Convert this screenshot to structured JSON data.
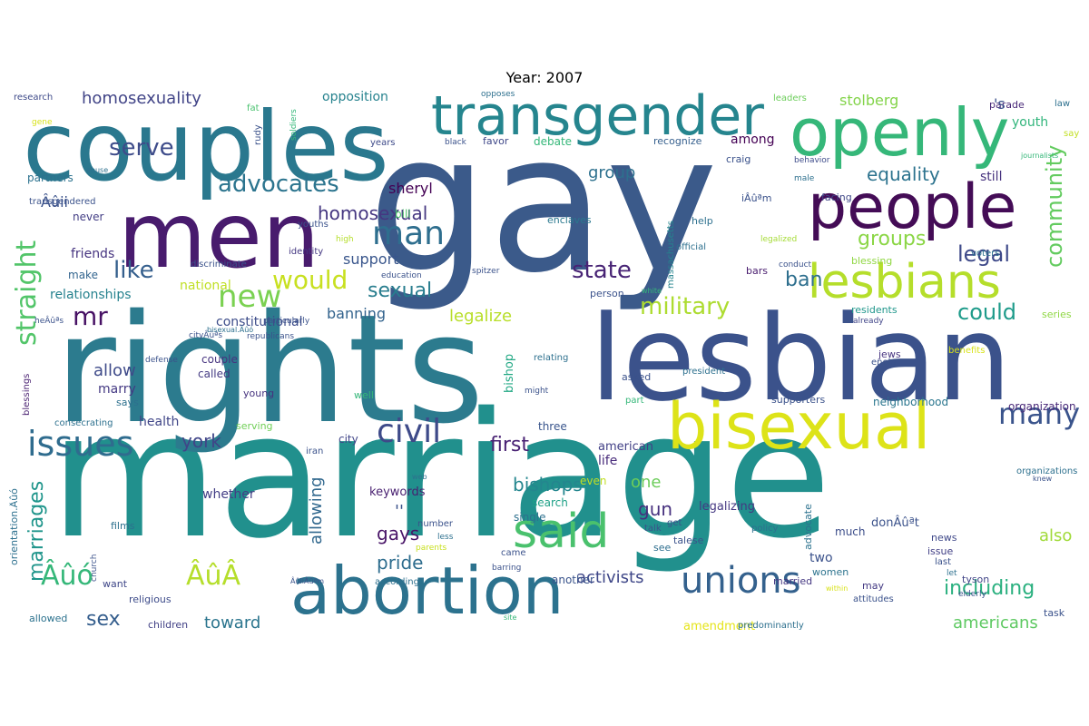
{
  "chart_data": {
    "type": "wordcloud",
    "title": "Year: 2007",
    "words": [
      {
        "text": "gay",
        "weight": 100,
        "color": "#3b5a8a"
      },
      {
        "text": "marriage",
        "weight": 96,
        "color": "#21908d"
      },
      {
        "text": "rights",
        "weight": 84,
        "color": "#2c7b8e"
      },
      {
        "text": "lesbian",
        "weight": 74,
        "color": "#3b528b"
      },
      {
        "text": "couples",
        "weight": 60,
        "color": "#2a788e"
      },
      {
        "text": "men",
        "weight": 60,
        "color": "#481b6d"
      },
      {
        "text": "bisexual",
        "weight": 48,
        "color": "#dde318"
      },
      {
        "text": "abortion",
        "weight": 48,
        "color": "#2c728e"
      },
      {
        "text": "openly",
        "weight": 46,
        "color": "#35b779"
      },
      {
        "text": "people",
        "weight": 44,
        "color": "#440c56"
      },
      {
        "text": "transgender",
        "weight": 42,
        "color": "#25858e"
      },
      {
        "text": "lesbians",
        "weight": 36,
        "color": "#b5de2b"
      },
      {
        "text": "said",
        "weight": 36,
        "color": "#4ac16d"
      },
      {
        "text": "unions",
        "weight": 30,
        "color": "#34618d"
      },
      {
        "text": "issues",
        "weight": 30,
        "color": "#2f6c8e"
      },
      {
        "text": "civil",
        "weight": 28,
        "color": "#3e4a89"
      },
      {
        "text": "man",
        "weight": 28,
        "color": "#2e6e8e"
      },
      {
        "text": "new",
        "weight": 24,
        "color": "#7ad151"
      },
      {
        "text": "straight",
        "weight": 22,
        "color": "#52c569"
      },
      {
        "text": "many",
        "weight": 22,
        "color": "#3a548c"
      },
      {
        "text": "would",
        "weight": 20,
        "color": "#c8e020"
      },
      {
        "text": "serve",
        "weight": 20,
        "color": "#3e4c8a"
      },
      {
        "text": "advocates",
        "weight": 20,
        "color": "#2b748e"
      },
      {
        "text": "military",
        "weight": 20,
        "color": "#addc30"
      },
      {
        "text": "community",
        "weight": 20,
        "color": "#63cb5f"
      },
      {
        "text": "state",
        "weight": 20,
        "color": "#482475"
      },
      {
        "text": "like",
        "weight": 20,
        "color": "#355f8d"
      },
      {
        "text": "mr",
        "weight": 20,
        "color": "#471164"
      },
      {
        "text": "including",
        "weight": 18,
        "color": "#2ab07f"
      },
      {
        "text": "could",
        "weight": 18,
        "color": "#1e9b8a"
      },
      {
        "text": "sexual",
        "weight": 18,
        "color": "#287d8e"
      },
      {
        "text": "marriages",
        "weight": 18,
        "color": "#1f958b"
      },
      {
        "text": "legal",
        "weight": 18,
        "color": "#3e4989"
      },
      {
        "text": "groups",
        "weight": 18,
        "color": "#8bd646"
      },
      {
        "text": "equality",
        "weight": 16,
        "color": "#2c738e"
      },
      {
        "text": "homosexual",
        "weight": 16,
        "color": "#453781"
      },
      {
        "text": "homosexuality",
        "weight": 16,
        "color": "#414487"
      },
      {
        "text": "bishops",
        "weight": 16,
        "color": "#24868e"
      },
      {
        "text": "first",
        "weight": 16,
        "color": "#482173"
      },
      {
        "text": "york",
        "weight": 16,
        "color": "#404588"
      },
      {
        "text": "sex",
        "weight": 16,
        "color": "#355e8d"
      },
      {
        "text": "pride",
        "weight": 16,
        "color": "#2e6d8e"
      },
      {
        "text": "gays",
        "weight": 16,
        "color": "#481467"
      },
      {
        "text": "ban",
        "weight": 16,
        "color": "#2e6f8e"
      },
      {
        "text": "americans",
        "weight": 14,
        "color": "#5ec962"
      },
      {
        "text": "activists",
        "weight": 14,
        "color": "#3f4788"
      },
      {
        "text": "toward",
        "weight": 14,
        "color": "#2b758e"
      },
      {
        "text": "legalize",
        "weight": 14,
        "color": "#b8de29"
      },
      {
        "text": "gun",
        "weight": 14,
        "color": "#46307e"
      },
      {
        "text": "one",
        "weight": 14,
        "color": "#6ccd5a"
      },
      {
        "text": "also",
        "weight": 14,
        "color": "#a0da39"
      },
      {
        "text": "allow",
        "weight": 14,
        "color": "#3e4a89"
      },
      {
        "text": "allowing",
        "weight": 14,
        "color": "#31688e"
      },
      {
        "text": "stolberg",
        "weight": 12,
        "color": "#84d44b"
      },
      {
        "text": "group",
        "weight": 12,
        "color": "#2d708e"
      },
      {
        "text": "sheryl",
        "weight": 12,
        "color": "#440154"
      },
      {
        "text": "banning",
        "weight": 12,
        "color": "#33638d"
      },
      {
        "text": "support",
        "weight": 12,
        "color": "#39568c"
      },
      {
        "text": "relationships",
        "weight": 11,
        "color": "#26828e"
      },
      {
        "text": "friends",
        "weight": 11,
        "color": "#463480"
      },
      {
        "text": "national",
        "weight": 11,
        "color": "#c0df25"
      },
      {
        "text": "constitutional",
        "weight": 11,
        "color": "#3d4d8a"
      },
      {
        "text": "health",
        "weight": 11,
        "color": "#404688"
      },
      {
        "text": "marry",
        "weight": 11,
        "color": "#443983"
      },
      {
        "text": "bishop",
        "weight": 11,
        "color": "#22a884"
      },
      {
        "text": "life",
        "weight": 11,
        "color": "#472a7a"
      },
      {
        "text": "american",
        "weight": 11,
        "color": "#424086"
      },
      {
        "text": "whether",
        "weight": 11,
        "color": "#433e85"
      },
      {
        "text": "keywords",
        "weight": 11,
        "color": "#481f70"
      },
      {
        "text": "opposition",
        "weight": 11,
        "color": "#26828e"
      },
      {
        "text": "youth",
        "weight": 11,
        "color": "#31b57b"
      },
      {
        "text": "among",
        "weight": 11,
        "color": "#440154"
      },
      {
        "text": "still",
        "weight": 11,
        "color": "#46327e"
      },
      {
        "text": "two",
        "weight": 11,
        "color": "#3b528b"
      },
      {
        "text": "organization",
        "weight": 10,
        "color": "#482878"
      },
      {
        "text": "neighborhood",
        "weight": 10,
        "color": "#2a768e"
      },
      {
        "text": "legalizing",
        "weight": 10,
        "color": "#453882"
      },
      {
        "text": "amendment",
        "weight": 10,
        "color": "#e5e419"
      },
      {
        "text": "single",
        "weight": 9,
        "color": "#2d708e"
      },
      {
        "text": "search",
        "weight": 9,
        "color": "#1fa187"
      },
      {
        "text": "another",
        "weight": 9,
        "color": "#3a548c"
      },
      {
        "text": "couple",
        "weight": 9,
        "color": "#46337f"
      },
      {
        "text": "called",
        "weight": 9,
        "color": "#443a83"
      },
      {
        "text": "make",
        "weight": 9,
        "color": "#32648e"
      },
      {
        "text": "never",
        "weight": 9,
        "color": "#433e85"
      },
      {
        "text": "partners",
        "weight": 9,
        "color": "#2c728e"
      },
      {
        "text": "bill",
        "weight": 9,
        "color": "#4ec36b"
      },
      {
        "text": "debate",
        "weight": 9,
        "color": "#35b779"
      },
      {
        "text": "recognize",
        "weight": 9,
        "color": "#355f8d"
      },
      {
        "text": "favor",
        "weight": 9,
        "color": "#3f4889"
      },
      {
        "text": "craig",
        "weight": 9,
        "color": "#3b528b"
      },
      {
        "text": "facing",
        "weight": 9,
        "color": "#3f4788"
      },
      {
        "text": "help",
        "weight": 9,
        "color": "#2d708e"
      },
      {
        "text": "bars",
        "weight": 9,
        "color": "#481c6e"
      },
      {
        "text": "enclaves",
        "weight": 9,
        "color": "#2a788e"
      },
      {
        "text": "young",
        "weight": 9,
        "color": "#46337f"
      },
      {
        "text": "well",
        "weight": 9,
        "color": "#35b779"
      },
      {
        "text": "even",
        "weight": 9,
        "color": "#c2df23"
      },
      {
        "text": "three",
        "weight": 9,
        "color": "#39558c"
      },
      {
        "text": "city",
        "weight": 9,
        "color": "#404588"
      },
      {
        "text": "says",
        "weight": 8,
        "color": "#2d708e"
      },
      {
        "text": "serving",
        "weight": 8,
        "color": "#70cf57"
      },
      {
        "text": "religious",
        "weight": 8,
        "color": "#3e4c8a"
      },
      {
        "text": "want",
        "weight": 8,
        "color": "#3f4788"
      },
      {
        "text": "children",
        "weight": 8,
        "color": "#424186"
      },
      {
        "text": "allowed",
        "weight": 8,
        "color": "#2c728e"
      },
      {
        "text": "see",
        "weight": 8,
        "color": "#2e6e8e"
      },
      {
        "text": "women",
        "weight": 8,
        "color": "#2c738e"
      },
      {
        "text": "advocate",
        "weight": 8,
        "color": "#2c728e"
      },
      {
        "text": "much",
        "weight": 8,
        "color": "#3d4e8a"
      },
      {
        "text": "married",
        "weight": 8,
        "color": "#453882"
      },
      {
        "text": "may",
        "weight": 8,
        "color": "#443a83"
      },
      {
        "text": "tyson",
        "weight": 8,
        "color": "#414487"
      },
      {
        "text": "issue",
        "weight": 8,
        "color": "#424086"
      },
      {
        "text": "news",
        "weight": 8,
        "color": "#3f4889"
      },
      {
        "text": "supporters",
        "weight": 8,
        "color": "#3b528b"
      },
      {
        "text": "jews",
        "weight": 8,
        "color": "#46337f"
      },
      {
        "text": "series",
        "weight": 8,
        "color": "#8fd744"
      },
      {
        "text": "residents",
        "weight": 8,
        "color": "#1f968b"
      },
      {
        "text": "blessing",
        "weight": 8,
        "color": "#90d743"
      },
      {
        "text": "leaders",
        "weight": 7,
        "color": "#6ccd5a"
      },
      {
        "text": "parade",
        "weight": 7,
        "color": "#482878"
      },
      {
        "text": "law",
        "weight": 7,
        "color": "#2d708e"
      },
      {
        "text": "say",
        "weight": 7,
        "color": "#c2df23"
      },
      {
        "text": "research",
        "weight": 7,
        "color": "#3e4a89"
      },
      {
        "text": "fat",
        "weight": 7,
        "color": "#48c16e"
      },
      {
        "text": "rudy",
        "weight": 7,
        "color": "#3b528b"
      },
      {
        "text": "years",
        "weight": 7,
        "color": "#3e4a89"
      },
      {
        "text": "transgendered",
        "weight": 7,
        "color": "#3b528b"
      },
      {
        "text": "youths",
        "weight": 7,
        "color": "#3b528b"
      },
      {
        "text": "identity",
        "weight": 7,
        "color": "#453882"
      },
      {
        "text": "discriminate",
        "weight": 8,
        "color": "#3b528b"
      },
      {
        "text": "massachusetts",
        "weight": 7,
        "color": "#25848e"
      },
      {
        "text": "official",
        "weight": 7,
        "color": "#2d708e"
      },
      {
        "text": "legalized",
        "weight": 6,
        "color": "#a5db36"
      },
      {
        "text": "conduct",
        "weight": 6,
        "color": "#3b528b"
      },
      {
        "text": "voters",
        "weight": 7,
        "color": "#2c728e"
      },
      {
        "text": "behavior",
        "weight": 7,
        "color": "#3e4c8a"
      },
      {
        "text": "male",
        "weight": 6,
        "color": "#2d708e"
      },
      {
        "text": "person",
        "weight": 8,
        "color": "#3b528b"
      },
      {
        "text": "education",
        "weight": 6,
        "color": "#3b528b"
      },
      {
        "text": "high",
        "weight": 6,
        "color": "#b5de2b"
      },
      {
        "text": "spitzer",
        "weight": 7,
        "color": "#3b528b"
      },
      {
        "text": "white",
        "weight": 6,
        "color": "#35b779"
      },
      {
        "text": "already",
        "weight": 6,
        "color": "#404588"
      },
      {
        "text": "republicans",
        "weight": 7,
        "color": "#3b528b"
      },
      {
        "text": "particularly",
        "weight": 7,
        "color": "#3b528b"
      },
      {
        "text": "defense",
        "weight": 7,
        "color": "#3b528b"
      },
      {
        "text": "blessings",
        "weight": 7,
        "color": "#481f70"
      },
      {
        "text": "relating",
        "weight": 7,
        "color": "#2d708e"
      },
      {
        "text": "enola",
        "weight": 7,
        "color": "#3b528b"
      },
      {
        "text": "president",
        "weight": 7,
        "color": "#2d708e"
      },
      {
        "text": "benefits",
        "weight": 7,
        "color": "#d8e219"
      },
      {
        "text": "asked",
        "weight": 8,
        "color": "#3b528b"
      },
      {
        "text": "part",
        "weight": 7,
        "color": "#35b779"
      },
      {
        "text": "might",
        "weight": 6,
        "color": "#3b528b"
      },
      {
        "text": "consecrating",
        "weight": 7,
        "color": "#2d708e"
      },
      {
        "text": "iran",
        "weight": 7,
        "color": "#3b528b"
      },
      {
        "text": "number",
        "weight": 7,
        "color": "#3b528b"
      },
      {
        "text": "less",
        "weight": 6,
        "color": "#2d708e"
      },
      {
        "text": "parents",
        "weight": 6,
        "color": "#c8e020"
      },
      {
        "text": "films",
        "weight": 8,
        "color": "#2d708e"
      },
      {
        "text": "church",
        "weight": 6,
        "color": "#3b528b"
      },
      {
        "text": "came",
        "weight": 7,
        "color": "#3b528b"
      },
      {
        "text": "according",
        "weight": 7,
        "color": "#2d708e"
      },
      {
        "text": "barring",
        "weight": 6,
        "color": "#3b528b"
      },
      {
        "text": "within",
        "weight": 6,
        "color": "#d8e219"
      },
      {
        "text": "get",
        "weight": 7,
        "color": "#3b528b"
      },
      {
        "text": "talk",
        "weight": 7,
        "color": "#3b528b"
      },
      {
        "text": "policy",
        "weight": 7,
        "color": "#2d708e"
      },
      {
        "text": "talese",
        "weight": 8,
        "color": "#3b528b"
      },
      {
        "text": "elderly",
        "weight": 6,
        "color": "#3b528b"
      },
      {
        "text": "attitudes",
        "weight": 7,
        "color": "#3b528b"
      },
      {
        "text": "predominantly",
        "weight": 7,
        "color": "#2d708e"
      },
      {
        "text": "task",
        "weight": 8,
        "color": "#3b528b"
      },
      {
        "text": "let",
        "weight": 6,
        "color": "#2d708e"
      },
      {
        "text": "last",
        "weight": 7,
        "color": "#3b528b"
      },
      {
        "text": "organizations",
        "weight": 7,
        "color": "#2d708e"
      },
      {
        "text": "knew",
        "weight": 6,
        "color": "#3b528b"
      },
      {
        "text": "site",
        "weight": 6,
        "color": "#35b779"
      },
      {
        "text": "web",
        "weight": 5,
        "color": "#2d708e"
      },
      {
        "text": "soldiers",
        "weight": 6,
        "color": "#35b779"
      },
      {
        "text": "opposes",
        "weight": 6,
        "color": "#2d708e"
      },
      {
        "text": "black",
        "weight": 6,
        "color": "#3b528b"
      },
      {
        "text": "journalists",
        "weight": 6,
        "color": "#35b779"
      },
      {
        "text": "gene",
        "weight": 6,
        "color": "#d8e219"
      },
      {
        "text": "abuse",
        "weight": 6,
        "color": "#2d708e"
      },
      {
        "text": "'s",
        "weight": 12,
        "color": "#3b528b"
      },
      {
        "text": "''",
        "weight": 12,
        "color": "#3b528b"
      },
      {
        "text": "donÂûªt",
        "weight": 10,
        "color": "#3b528b"
      },
      {
        "text": "iÂûªm",
        "weight": 9,
        "color": "#3b528b"
      },
      {
        "text": "Âûii",
        "weight": 12,
        "color": "#3b528b"
      },
      {
        "text": "Âûó",
        "weight": 22,
        "color": "#35b779"
      },
      {
        "text": "ÂûÂ",
        "weight": 22,
        "color": "#b5de2b"
      },
      {
        "text": "cityÂûªs",
        "weight": 6,
        "color": "#3b528b"
      },
      {
        "text": "heÂûªs",
        "weight": 7,
        "color": "#3b528b"
      },
      {
        "text": "orientation.Âûó",
        "weight": 8,
        "color": "#2d708e"
      },
      {
        "text": "bisexual.Âûó",
        "weight": 6,
        "color": "#2d708e"
      },
      {
        "text": "ÂûiiÂûªm",
        "weight": 6,
        "color": "#3b528b"
      }
    ]
  }
}
